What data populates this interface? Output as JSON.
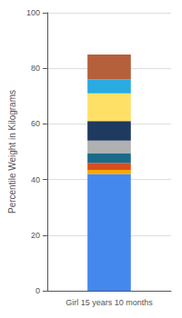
{
  "chart_data": {
    "type": "bar",
    "categories": [
      "Girl 15 years 10 months"
    ],
    "ylabel": "Percentile Weight in Kilograms",
    "series": [
      {
        "color": "#4488ee",
        "values": [
          42
        ]
      },
      {
        "color": "#f5a800",
        "values": [
          1.5
        ]
      },
      {
        "color": "#d94e1f",
        "values": [
          2.5
        ]
      },
      {
        "color": "#1a6b8a",
        "values": [
          3.5
        ]
      },
      {
        "color": "#b0b0b0",
        "values": [
          4.5
        ]
      },
      {
        "color": "#1e3a5f",
        "values": [
          7
        ]
      },
      {
        "color": "#ffe066",
        "values": [
          10
        ]
      },
      {
        "color": "#29abe2",
        "values": [
          5
        ]
      },
      {
        "color": "#b5603a",
        "values": [
          9
        ]
      }
    ],
    "stacked": true,
    "ylim": [
      0,
      100
    ],
    "yticks": [
      0,
      20,
      40,
      60,
      80,
      100
    ],
    "grid": true
  }
}
